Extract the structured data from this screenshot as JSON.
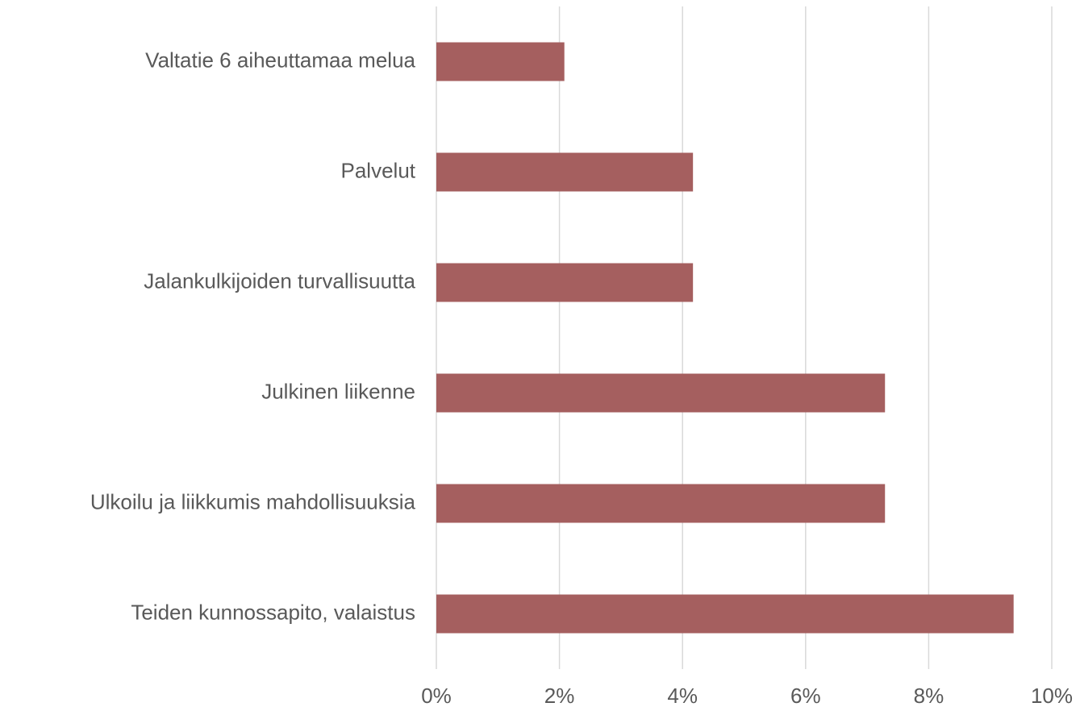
{
  "chart_data": {
    "type": "barh",
    "categories": [
      "Valtatie 6 aiheuttamaa melua",
      "Palvelut",
      "Jalankulkijoiden turvallisuutta",
      "Julkinen liikenne",
      "Ulkoilu ja liikkumis mahdollisuuksia",
      "Teiden kunnossapito, valaistus"
    ],
    "values": [
      2.08,
      4.17,
      4.17,
      7.29,
      7.29,
      9.38
    ],
    "color": "#a55f5f",
    "xlim": [
      0,
      10
    ],
    "xticks": [
      {
        "value": 0,
        "label": "0%"
      },
      {
        "value": 2,
        "label": "2%"
      },
      {
        "value": 4,
        "label": "4%"
      },
      {
        "value": 6,
        "label": "6%"
      },
      {
        "value": 8,
        "label": "8%"
      },
      {
        "value": 10,
        "label": "10%"
      }
    ],
    "grid": true
  }
}
